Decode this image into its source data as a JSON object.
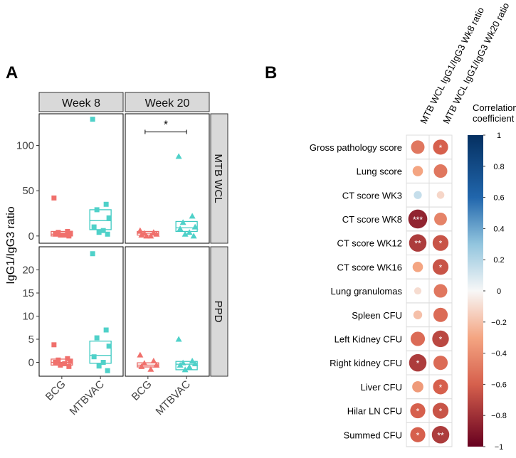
{
  "panel_a": {
    "label": "A",
    "ylabel": "IgG1/IgG3 ratio",
    "columns": [
      "Week 8",
      "Week 20"
    ],
    "rows": [
      "MTB WCL",
      "PPD"
    ],
    "x_categories": [
      "BCG",
      "MTBVAC"
    ],
    "significance": "*"
  },
  "panel_b": {
    "label": "B",
    "columns": [
      "MTB WCL IgG1/IgG3 Wk8 ratio",
      "MTB WCL IgG1/IgG3 Wk20 ratio"
    ],
    "legend_title_line1": "Correlation",
    "legend_title_line2": "coefficient",
    "legend_ticks": [
      "1",
      "0.8",
      "0.6",
      "0.4",
      "0.2",
      "0",
      "−0.2",
      "−0.4",
      "−0.6",
      "−0.8",
      "−1"
    ]
  },
  "colors": {
    "bcg": "#f0706c",
    "mtbvac": "#4fd1c9",
    "strip_bg": "#d9d9d9",
    "positive": "#1f4e8a",
    "negative": "#b2182b"
  },
  "chart_data": [
    {
      "type": "scatter",
      "title": "Week 8 / MTB WCL",
      "xlabel": "",
      "ylabel": "IgG1/IgG3 ratio",
      "ylim": [
        -8,
        135
      ],
      "y_ticks": [
        0,
        50,
        100
      ],
      "categories": [
        "BCG",
        "MTBVAC"
      ],
      "series": [
        {
          "name": "BCG",
          "marker": "square",
          "values": [
            42,
            5,
            4,
            3,
            2,
            1,
            1,
            0
          ],
          "box": {
            "q1": 0,
            "median": 2,
            "q3": 5
          }
        },
        {
          "name": "MTBVAC",
          "marker": "square",
          "values": [
            129,
            35,
            29,
            20,
            10,
            6,
            4,
            2
          ],
          "box": {
            "q1": 7,
            "median": 17,
            "q3": 29
          }
        }
      ]
    },
    {
      "type": "scatter",
      "title": "Week 20 / MTB WCL",
      "xlabel": "",
      "ylabel": "",
      "ylim": [
        -8,
        135
      ],
      "y_ticks": [
        0,
        50,
        100
      ],
      "categories": [
        "BCG",
        "MTBVAC"
      ],
      "significance": {
        "label": "*",
        "between": [
          "BCG",
          "MTBVAC"
        ],
        "y": 115
      },
      "series": [
        {
          "name": "BCG",
          "marker": "triangle",
          "values": [
            6,
            4,
            3,
            2,
            1,
            0,
            0
          ],
          "box": {
            "q1": 1,
            "median": 3,
            "q3": 5
          }
        },
        {
          "name": "MTBVAC",
          "marker": "triangle",
          "values": [
            88,
            22,
            15,
            10,
            8,
            4,
            2,
            0
          ],
          "box": {
            "q1": 5,
            "median": 9,
            "q3": 16
          }
        }
      ]
    },
    {
      "type": "scatter",
      "title": "Week 8 / PPD",
      "xlabel": "",
      "ylabel": "IgG1/IgG3 ratio",
      "ylim": [
        -3,
        25
      ],
      "y_ticks": [
        0,
        5,
        10,
        15,
        20
      ],
      "categories": [
        "BCG",
        "MTBVAC"
      ],
      "series": [
        {
          "name": "BCG",
          "marker": "square",
          "values": [
            3.8,
            0.8,
            0.5,
            0.2,
            0,
            -0.3,
            -0.6,
            -0.9
          ],
          "box": {
            "q1": -0.6,
            "median": 0,
            "q3": 0.7
          }
        },
        {
          "name": "MTBVAC",
          "marker": "square",
          "values": [
            23.5,
            7,
            5.3,
            3.5,
            1.2,
            0,
            -0.8,
            -1.8
          ],
          "box": {
            "q1": -0.2,
            "median": 1.5,
            "q3": 4.6
          }
        }
      ]
    },
    {
      "type": "scatter",
      "title": "Week 20 / PPD",
      "xlabel": "",
      "ylabel": "",
      "ylim": [
        -3,
        25
      ],
      "y_ticks": [
        0,
        5,
        10,
        15,
        20
      ],
      "categories": [
        "BCG",
        "MTBVAC"
      ],
      "series": [
        {
          "name": "BCG",
          "marker": "triangle",
          "values": [
            1.6,
            0.3,
            -0.2,
            -0.6,
            -0.9,
            -1.5
          ],
          "box": {
            "q1": -1,
            "median": -0.6,
            "q3": -0.1
          }
        },
        {
          "name": "MTBVAC",
          "marker": "triangle",
          "values": [
            5,
            0.3,
            -0.1,
            -0.3,
            -0.6,
            -1,
            -1.6
          ],
          "box": {
            "q1": -1.6,
            "median": -0.4,
            "q3": 0.2
          }
        }
      ]
    },
    {
      "type": "heatmap",
      "title": "Correlation coefficient",
      "columns": [
        "MTB WCL IgG1/IgG3 Wk8 ratio",
        "MTB WCL IgG1/IgG3 Wk20 ratio"
      ],
      "clim": [
        -1,
        1
      ],
      "rows": [
        {
          "label": "Gross pathology score",
          "values": [
            -0.5,
            -0.6
          ],
          "sig": [
            "",
            "*"
          ]
        },
        {
          "label": "Lung score",
          "values": [
            -0.3,
            -0.5
          ],
          "sig": [
            "",
            ""
          ]
        },
        {
          "label": "CT score WK3",
          "values": [
            0.15,
            -0.12
          ],
          "sig": [
            "",
            ""
          ]
        },
        {
          "label": "CT score WK8",
          "values": [
            -0.85,
            -0.45
          ],
          "sig": [
            "***",
            ""
          ]
        },
        {
          "label": "CT score WK12",
          "values": [
            -0.75,
            -0.65
          ],
          "sig": [
            "**",
            "*"
          ]
        },
        {
          "label": "CT score WK16",
          "values": [
            -0.3,
            -0.65
          ],
          "sig": [
            "",
            "*"
          ]
        },
        {
          "label": "Lung granulomas",
          "values": [
            -0.1,
            -0.5
          ],
          "sig": [
            "",
            ""
          ]
        },
        {
          "label": "Spleen CFU",
          "values": [
            -0.2,
            -0.55
          ],
          "sig": [
            "",
            ""
          ]
        },
        {
          "label": "Left Kidney CFU",
          "values": [
            -0.55,
            -0.7
          ],
          "sig": [
            "",
            "*"
          ]
        },
        {
          "label": "Right kidney CFU",
          "values": [
            -0.75,
            -0.55
          ],
          "sig": [
            "*",
            ""
          ]
        },
        {
          "label": "Liver CFU",
          "values": [
            -0.35,
            -0.6
          ],
          "sig": [
            "",
            "*"
          ]
        },
        {
          "label": "Hilar LN CFU",
          "values": [
            -0.6,
            -0.65
          ],
          "sig": [
            "*",
            "*"
          ]
        },
        {
          "label": "Summed CFU",
          "values": [
            -0.6,
            -0.75
          ],
          "sig": [
            "*",
            "**"
          ]
        }
      ]
    }
  ]
}
